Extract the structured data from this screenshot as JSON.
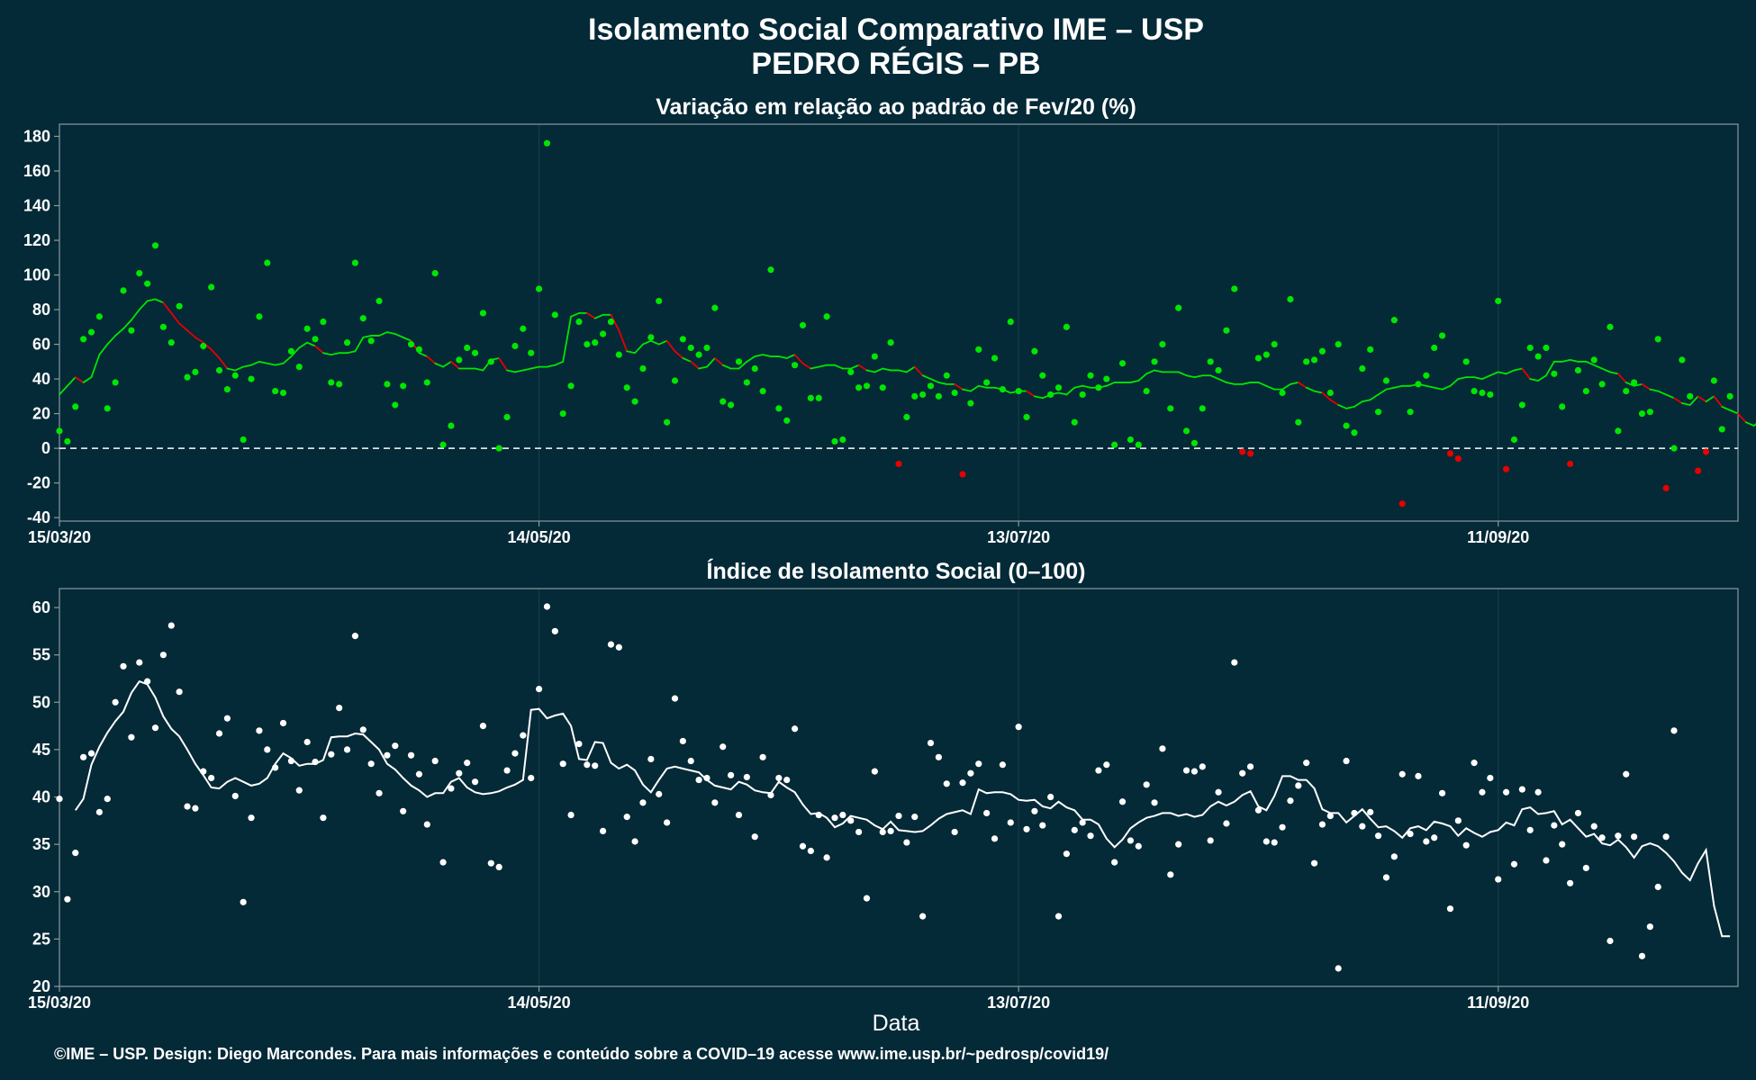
{
  "title": "Isolamento Social Comparativo IME – USP",
  "subtitle": "PEDRO RÉGIS – PB",
  "caption": "©IME – USP. Design: Diego Marcondes. Para mais informações e conteúdo sobre a COVID–19 acesse www.ime.usp.br/~pedrosp/covid19/",
  "x_axis_label": "Data",
  "colors": {
    "background": "#042937",
    "positive": "#00e600",
    "negative": "#e60000",
    "index": "#ffffff",
    "axis": "#8a9aa0",
    "grid": "#1c3f4c"
  },
  "chart_data": [
    {
      "type": "scatter",
      "title": "Variação em relação ao padrão de Fev/20 (%)",
      "xlabel": "Data",
      "ylabel": "",
      "x_start": "15/03/20",
      "x_range_days": [
        0,
        210
      ],
      "ylim": [
        -42,
        187
      ],
      "y_ticks": [
        -40,
        -20,
        0,
        20,
        40,
        60,
        80,
        100,
        120,
        140,
        160,
        180
      ],
      "x_tick_labels": [
        "15/03/20",
        "14/05/20",
        "13/07/20",
        "11/09/20"
      ],
      "x_tick_days": [
        0,
        60,
        120,
        180
      ],
      "reference_line": 0,
      "grid": true,
      "series": [
        {
          "kind": "points",
          "values": [
            10,
            4,
            24,
            63,
            67,
            76,
            23,
            38,
            91,
            68,
            101,
            95,
            117,
            70,
            61,
            82,
            41,
            44,
            59,
            93,
            45,
            34,
            42,
            5,
            40,
            76,
            107,
            33,
            32,
            56,
            47,
            69,
            63,
            73,
            38,
            37,
            61,
            107,
            75,
            62,
            85,
            37,
            25,
            36,
            60,
            57,
            38,
            101,
            2,
            13,
            51,
            58,
            55,
            78,
            50,
            0,
            18,
            59,
            69,
            55,
            92,
            176,
            77,
            20,
            36,
            73,
            60,
            61,
            66,
            73,
            54,
            35,
            27,
            46,
            64,
            85,
            15,
            39,
            63,
            58,
            54,
            58,
            81,
            27,
            25,
            50,
            38,
            46,
            33,
            103,
            23,
            16,
            48,
            71,
            29,
            29,
            76,
            4,
            5,
            44,
            35,
            36,
            53,
            35,
            61,
            -9,
            18,
            30,
            31,
            36,
            30,
            42,
            32,
            -15,
            26,
            57,
            38,
            52,
            34,
            73,
            33,
            18,
            56,
            42,
            31,
            35,
            70,
            15,
            31,
            42,
            35,
            40,
            2,
            49,
            5,
            2,
            33,
            50,
            60,
            23,
            81,
            10,
            3,
            23,
            50,
            45,
            68,
            92,
            -2,
            -3,
            52,
            54,
            60,
            32,
            86,
            15,
            50,
            51,
            56,
            32,
            60,
            13,
            9,
            46,
            57,
            21,
            39,
            74,
            -32,
            21,
            37,
            42,
            58,
            65,
            -3,
            -6,
            50,
            33,
            32,
            31,
            85,
            -12,
            5,
            25,
            58,
            53,
            58,
            43,
            24,
            -9,
            45,
            33,
            51,
            37,
            70,
            10,
            33,
            38,
            20,
            21,
            63,
            -23,
            0,
            51,
            30,
            -13,
            -2,
            39,
            11,
            30
          ]
        },
        {
          "kind": "moving-average",
          "values": [
            31,
            36,
            41,
            38,
            41,
            54,
            60,
            65,
            69,
            74,
            80,
            85,
            86,
            84,
            78,
            72,
            68,
            64,
            61,
            57,
            52,
            46,
            45,
            47,
            48,
            50,
            49,
            48,
            49,
            53,
            58,
            61,
            59,
            55,
            54,
            55,
            55,
            56,
            64,
            65,
            65,
            67,
            66,
            64,
            62,
            55,
            53,
            49,
            47,
            50,
            46,
            46,
            46,
            45,
            51,
            52,
            45,
            44,
            45,
            46,
            47,
            47,
            48,
            50,
            76,
            78,
            78,
            75,
            77,
            77,
            68,
            56,
            55,
            60,
            62,
            60,
            62,
            56,
            52,
            50,
            46,
            47,
            52,
            48,
            46,
            46,
            50,
            53,
            54,
            53,
            53,
            52,
            54,
            49,
            46,
            47,
            48,
            48,
            46,
            46,
            48,
            45,
            44,
            46,
            45,
            45,
            44,
            47,
            42,
            40,
            38,
            37,
            37,
            34,
            33,
            36,
            35,
            35,
            34,
            32,
            33,
            33,
            30,
            29,
            31,
            32,
            31,
            35,
            36,
            35,
            35,
            36,
            38,
            38,
            38,
            39,
            43,
            45,
            44,
            44,
            44,
            42,
            41,
            42,
            42,
            40,
            38,
            37,
            37,
            38,
            38,
            36,
            34,
            34,
            37,
            38,
            35,
            33,
            32,
            28,
            25,
            23,
            24,
            27,
            28,
            31,
            34,
            35,
            36,
            36,
            37,
            36,
            35,
            34,
            36,
            40,
            41,
            41,
            40,
            42,
            44,
            43,
            45,
            46,
            40,
            39,
            42,
            50,
            50,
            51,
            50,
            50,
            48,
            46,
            44,
            43,
            38,
            36,
            37,
            34,
            33,
            31,
            29,
            26,
            25,
            30,
            27,
            30,
            24,
            22,
            20,
            15,
            13,
            17,
            21
          ]
        }
      ]
    },
    {
      "type": "scatter",
      "title": "Índice de Isolamento Social (0–100)",
      "xlabel": "Data",
      "ylabel": "",
      "x_start": "15/03/20",
      "x_range_days": [
        0,
        210
      ],
      "ylim": [
        20,
        62
      ],
      "y_ticks": [
        20,
        25,
        30,
        35,
        40,
        45,
        50,
        55,
        60
      ],
      "x_tick_labels": [
        "15/03/20",
        "14/05/20",
        "13/07/20",
        "11/09/20"
      ],
      "x_tick_days": [
        0,
        60,
        120,
        180
      ],
      "grid": true,
      "series": [
        {
          "kind": "points",
          "values": [
            39.8,
            29.2,
            34.1,
            44.2,
            44.6,
            38.4,
            39.8,
            50,
            53.8,
            46.3,
            54.2,
            52.2,
            47.3,
            55,
            58.1,
            51.1,
            39,
            38.8,
            42.7,
            42,
            46.7,
            48.3,
            40.1,
            28.9,
            37.8,
            47,
            45,
            43.1,
            47.8,
            43.8,
            40.7,
            45.8,
            43.7,
            37.8,
            44.5,
            49.4,
            45,
            57,
            47.1,
            43.5,
            40.4,
            44.4,
            45.4,
            38.5,
            44.4,
            42.4,
            37.1,
            43.8,
            33.1,
            40.9,
            42.5,
            43.6,
            41.6,
            47.5,
            33,
            32.6,
            42.8,
            44.6,
            46.5,
            42,
            51.4,
            60.1,
            57.5,
            43.5,
            38.1,
            45.6,
            43.4,
            43.3,
            36.4,
            56.1,
            55.8,
            37.9,
            35.3,
            39.4,
            44,
            40.3,
            37.3,
            50.4,
            45.9,
            43.8,
            41.8,
            42,
            39.4,
            45.3,
            42.3,
            38.1,
            42.1,
            35.8,
            44.2,
            40.2,
            42,
            41.8,
            47.2,
            34.8,
            34.3,
            38.1,
            33.6,
            37.8,
            38.1,
            37.5,
            36.3,
            29.3,
            42.7,
            36.3,
            36.4,
            38,
            35.2,
            37.9,
            27.4,
            45.7,
            44.2,
            41.4,
            36.3,
            41.5,
            42.5,
            43.5,
            38.3,
            35.6,
            43.4,
            37.3,
            47.4,
            36.6,
            38.5,
            37,
            40,
            27.4,
            34,
            36.5,
            37.3,
            35.9,
            42.8,
            43.4,
            33.1,
            39.5,
            35.4,
            34.8,
            41.3,
            39.4,
            45.1,
            31.8,
            35,
            42.8,
            42.7,
            43.2,
            35.4,
            40.5,
            37.2,
            54.2,
            42.5,
            43.2,
            38.6,
            35.3,
            35.2,
            36.8,
            39.6,
            41.2,
            43.6,
            33,
            37.1,
            38,
            21.9,
            43.8,
            38.3,
            36.9,
            38.4,
            35.9,
            31.5,
            33.7,
            42.4,
            36.1,
            42.2,
            35.3,
            35.7,
            40.4,
            28.2,
            37.5,
            34.9,
            43.6,
            40.5,
            42,
            31.3,
            40.5,
            32.9,
            40.8,
            36.5,
            40.5,
            33.3,
            37,
            35,
            30.9,
            38.3,
            32.5,
            36.9,
            35.7,
            24.8,
            35.9,
            42.4,
            35.8,
            23.2,
            26.3,
            30.5,
            35.8,
            47
          ]
        },
        {
          "kind": "moving-average",
          "values": [
            38.6,
            39.8,
            43.4,
            45.3,
            46.8,
            48,
            49,
            51,
            52.2,
            51.9,
            50.5,
            48.5,
            47.2,
            46.4,
            45,
            43.5,
            42.3,
            41,
            40.9,
            41.6,
            42,
            41.6,
            41.2,
            41.4,
            42,
            43.5,
            44.6,
            44.1,
            43.3,
            43.5,
            43.5,
            43.9,
            46.3,
            46.4,
            46.4,
            46.7,
            46.6,
            45.8,
            45,
            43.5,
            42.9,
            42,
            41.2,
            40.7,
            40,
            40.4,
            40.4,
            41.6,
            42,
            41,
            40.5,
            40.3,
            40.4,
            40.6,
            41,
            41.3,
            41.8,
            49.2,
            49.3,
            48.3,
            48.6,
            48.8,
            47.5,
            44,
            43.9,
            45.8,
            45.7,
            43.6,
            43,
            43.4,
            42.8,
            41.3,
            40.5,
            41.8,
            43,
            43.2,
            43,
            42.8,
            42.6,
            41.8,
            41.2,
            41,
            40.8,
            41.6,
            41.3,
            40.7,
            40.5,
            40.4,
            41.6,
            41,
            40.5,
            39.2,
            38.2,
            38.3,
            37.8,
            36.8,
            37.2,
            38,
            37.8,
            37.6,
            37,
            36.6,
            37.4,
            36.5,
            36.4,
            36.3,
            36.4,
            37,
            37.7,
            38.2,
            38.4,
            38.6,
            38.2,
            40.8,
            40.4,
            40.5,
            40.5,
            40.3,
            39.7,
            39.6,
            39.7,
            39,
            38.8,
            39.5,
            38.9,
            38.6,
            37.6,
            37.6,
            37.1,
            35.6,
            34.7,
            35.5,
            36.7,
            37.3,
            37.8,
            38,
            38.3,
            38.3,
            38,
            38.2,
            37.9,
            38.1,
            39,
            39.5,
            39.1,
            39.5,
            40.2,
            40.6,
            39,
            38.6,
            40.1,
            42.2,
            42.2,
            41.8,
            41.8,
            40.9,
            38.7,
            38.3,
            38.3,
            37.3,
            38,
            38.7,
            37.7,
            36.8,
            36.9,
            36.4,
            35.7,
            36.7,
            36.9,
            36.5,
            37.4,
            37.2,
            36.9,
            35.9,
            36.7,
            36.2,
            35.8,
            36.3,
            36.5,
            37.3,
            37,
            38.7,
            38.9,
            38.2,
            38.3,
            38.5,
            37.1,
            37.6,
            36.7,
            35.8,
            36.1,
            35.1,
            34.9,
            35.5,
            34.7,
            33.6,
            34.8,
            35.1,
            34.8,
            34.1,
            33.2,
            32,
            31.2,
            33,
            34.4,
            28.5,
            25.3,
            25.3
          ]
        }
      ]
    }
  ]
}
